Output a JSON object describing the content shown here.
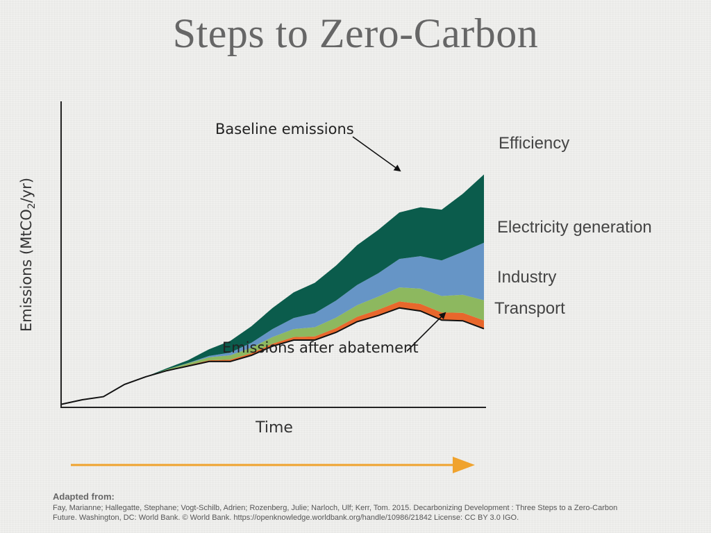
{
  "title": "Steps to Zero-Carbon",
  "chart_data": {
    "type": "area",
    "xlabel": "Time",
    "ylabel_main": "Emissions (MtCO",
    "ylabel_sub": "2",
    "ylabel_tail": "/yr)",
    "x": [
      0,
      1,
      2,
      3,
      4,
      5,
      6,
      7,
      8,
      9,
      10,
      11,
      12,
      13,
      14,
      15,
      16,
      17,
      18,
      19,
      20
    ],
    "series": [
      {
        "name": "Transport",
        "color": "#e8672c",
        "bottom_key": "after",
        "values": [
          0,
          0,
          0,
          0,
          0,
          0.1,
          0.3,
          0.4,
          0.6,
          0.7,
          0.8,
          1.0,
          1.2,
          1.4,
          1.6,
          1.9,
          2.1,
          2.3,
          2.5,
          2.6,
          2.7
        ]
      },
      {
        "name": "Industry",
        "color": "#8db85f",
        "values": [
          0,
          0,
          0,
          0,
          0,
          0.3,
          0.6,
          1.0,
          1.4,
          1.8,
          2.2,
          2.6,
          3.0,
          3.4,
          3.8,
          4.3,
          4.6,
          5.0,
          5.4,
          5.9,
          6.6
        ]
      },
      {
        "name": "Electricity generation",
        "color": "#6695c6",
        "values": [
          0,
          0,
          0,
          0,
          0,
          0,
          0.1,
          0.4,
          0.9,
          1.6,
          2.6,
          3.6,
          4.6,
          5.6,
          6.6,
          7.6,
          9.3,
          10.6,
          11.6,
          14.0,
          18.8
        ]
      },
      {
        "name": "Efficiency",
        "color": "#0b5c4c",
        "values": [
          0,
          0,
          0,
          0,
          0,
          0.4,
          0.9,
          2.2,
          3.8,
          5.4,
          6.9,
          8.4,
          9.9,
          11.4,
          13.0,
          14.2,
          15.2,
          16.0,
          16.6,
          19.0,
          22.3
        ]
      }
    ],
    "emissions_after_abatement": [
      1.0,
      2.5,
      3.5,
      7.5,
      10.0,
      12.0,
      13.5,
      15.0,
      15.0,
      17.0,
      20.0,
      22.0,
      22.0,
      24.5,
      28.0,
      30.0,
      32.5,
      31.5,
      28.5,
      28.3,
      25.7
    ],
    "lines": {
      "baseline": "Baseline emissions",
      "after": "Emissions after abatement"
    },
    "axis_color": "#222",
    "time_arrow_color": "#f0a32e"
  },
  "source": {
    "heading": "Adapted from:",
    "text": "Fay, Marianne; Hallegatte, Stephane; Vogt-Schilb, Adrien; Rozenberg, Julie; Narloch, Ulf; Kerr, Tom. 2015. Decarbonizing Development : Three Steps to a Zero-Carbon Future. Washington, DC: World Bank. © World Bank. https://openknowledge.worldbank.org/handle/10986/21842 License: CC BY 3.0 IGO."
  }
}
